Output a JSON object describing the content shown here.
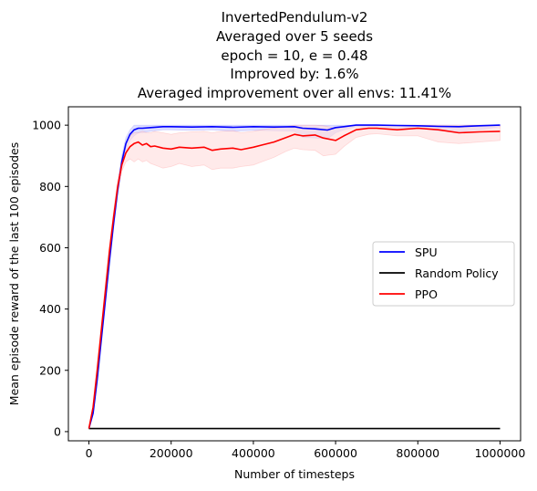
{
  "chart_data": {
    "type": "line",
    "title_lines": [
      "InvertedPendulum-v2",
      "Averaged over 5 seeds",
      "epoch = 10, e = 0.48",
      "Improved by: 1.6%",
      "Averaged improvement over all envs: 11.41%"
    ],
    "xlabel": "Number of timesteps",
    "ylabel": "Mean episode reward of the last 100 episodes",
    "xlim": [
      -50000,
      1050000
    ],
    "ylim": [
      -30,
      1060
    ],
    "x_ticks": [
      0,
      200000,
      400000,
      600000,
      800000,
      1000000
    ],
    "x_tick_labels": [
      "0",
      "200000",
      "400000",
      "600000",
      "800000",
      "1000000"
    ],
    "y_ticks": [
      0,
      200,
      400,
      600,
      800,
      1000
    ],
    "y_tick_labels": [
      "0",
      "200",
      "400",
      "600",
      "800",
      "1000"
    ],
    "grid": false,
    "legend_position": "center-right",
    "series": [
      {
        "name": "SPU",
        "color": "#0000ff",
        "band_color": "#c8c8ff",
        "x": [
          0,
          10000,
          20000,
          30000,
          40000,
          50000,
          60000,
          70000,
          80000,
          90000,
          100000,
          110000,
          120000,
          130000,
          150000,
          180000,
          200000,
          250000,
          300000,
          350000,
          400000,
          450000,
          500000,
          520000,
          550000,
          580000,
          600000,
          620000,
          650000,
          680000,
          700000,
          750000,
          800000,
          850000,
          900000,
          950000,
          1000000
        ],
        "y": [
          10,
          60,
          170,
          300,
          430,
          560,
          680,
          790,
          880,
          940,
          970,
          985,
          990,
          990,
          992,
          995,
          995,
          994,
          995,
          993,
          995,
          994,
          995,
          990,
          988,
          984,
          992,
          995,
          1000,
          1000,
          1000,
          999,
          998,
          996,
          995,
          998,
          1000
        ],
        "y_low": [
          10,
          55,
          160,
          285,
          410,
          540,
          660,
          770,
          860,
          915,
          950,
          965,
          975,
          975,
          980,
          985,
          985,
          983,
          985,
          980,
          983,
          982,
          980,
          960,
          958,
          955,
          975,
          985,
          995,
          995,
          995,
          990,
          990,
          982,
          978,
          985,
          995
        ],
        "y_high": [
          10,
          65,
          180,
          315,
          450,
          580,
          700,
          810,
          900,
          960,
          985,
          1000,
          1000,
          1000,
          1000,
          1000,
          1000,
          1000,
          1000,
          1000,
          1000,
          1000,
          1000,
          1000,
          1000,
          1000,
          1000,
          1000,
          1000,
          1000,
          1000,
          1000,
          1000,
          1000,
          1000,
          1000,
          1000
        ]
      },
      {
        "name": "Random Policy",
        "color": "#000000",
        "x": [
          0,
          1000000
        ],
        "y": [
          10,
          10
        ]
      },
      {
        "name": "PPO",
        "color": "#ff0000",
        "band_color": "#ffdcdc",
        "x": [
          0,
          10000,
          20000,
          30000,
          40000,
          50000,
          60000,
          70000,
          80000,
          90000,
          100000,
          110000,
          120000,
          130000,
          140000,
          150000,
          160000,
          180000,
          200000,
          220000,
          250000,
          280000,
          300000,
          320000,
          350000,
          370000,
          400000,
          420000,
          450000,
          480000,
          500000,
          520000,
          550000,
          570000,
          600000,
          620000,
          650000,
          680000,
          700000,
          750000,
          800000,
          850000,
          900000,
          950000,
          1000000
        ],
        "y": [
          10,
          80,
          200,
          330,
          460,
          590,
          700,
          800,
          870,
          910,
          930,
          940,
          945,
          935,
          940,
          930,
          932,
          925,
          922,
          928,
          925,
          928,
          918,
          922,
          925,
          920,
          928,
          935,
          945,
          960,
          970,
          965,
          968,
          958,
          950,
          965,
          985,
          990,
          990,
          985,
          990,
          985,
          975,
          978,
          980
        ],
        "y_low": [
          10,
          75,
          190,
          315,
          440,
          570,
          680,
          780,
          850,
          880,
          890,
          880,
          890,
          880,
          885,
          875,
          870,
          860,
          865,
          875,
          865,
          870,
          855,
          860,
          860,
          865,
          870,
          880,
          895,
          915,
          925,
          920,
          918,
          900,
          905,
          930,
          960,
          970,
          972,
          965,
          965,
          945,
          940,
          945,
          950
        ],
        "y_high": [
          10,
          85,
          210,
          345,
          480,
          610,
          720,
          820,
          890,
          940,
          965,
          975,
          975,
          980,
          975,
          975,
          980,
          975,
          970,
          975,
          978,
          980,
          975,
          980,
          982,
          975,
          980,
          985,
          990,
          995,
          1000,
          1000,
          1000,
          998,
          990,
          995,
          1000,
          1000,
          1000,
          1000,
          1000,
          1000,
          1000,
          1000,
          1000
        ]
      }
    ]
  }
}
